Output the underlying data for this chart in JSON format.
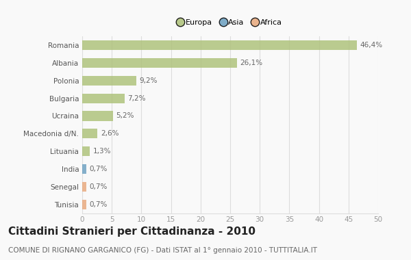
{
  "categories": [
    "Romania",
    "Albania",
    "Polonia",
    "Bulgaria",
    "Ucraina",
    "Macedonia d/N.",
    "Lituania",
    "India",
    "Senegal",
    "Tunisia"
  ],
  "values": [
    46.4,
    26.1,
    9.2,
    7.2,
    5.2,
    2.6,
    1.3,
    0.7,
    0.7,
    0.7
  ],
  "labels": [
    "46,4%",
    "26,1%",
    "9,2%",
    "7,2%",
    "5,2%",
    "2,6%",
    "1,3%",
    "0,7%",
    "0,7%",
    "0,7%"
  ],
  "colors": [
    "#adc178",
    "#adc178",
    "#adc178",
    "#adc178",
    "#adc178",
    "#adc178",
    "#adc178",
    "#6a9fc0",
    "#e8a87c",
    "#e8a87c"
  ],
  "legend_labels": [
    "Europa",
    "Asia",
    "Africa"
  ],
  "legend_colors": [
    "#adc178",
    "#6a9fc0",
    "#e8a87c"
  ],
  "xlim": [
    0,
    50
  ],
  "xticks": [
    0,
    5,
    10,
    15,
    20,
    25,
    30,
    35,
    40,
    45,
    50
  ],
  "title": "Cittadini Stranieri per Cittadinanza - 2010",
  "subtitle": "COMUNE DI RIGNANO GARGANICO (FG) - Dati ISTAT al 1° gennaio 2010 - TUTTITALIA.IT",
  "bg_color": "#f9f9f9",
  "bar_height": 0.55,
  "grid_color": "#dddddd",
  "label_fontsize": 7.5,
  "tick_fontsize": 7.5,
  "title_fontsize": 11,
  "subtitle_fontsize": 7.5
}
